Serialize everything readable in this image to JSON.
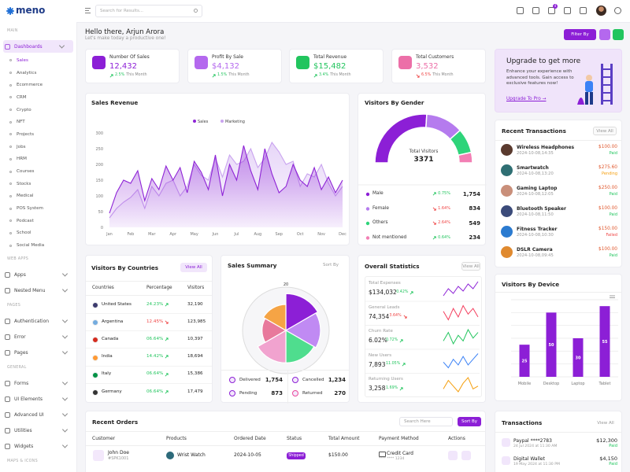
{
  "sidebar": {
    "logo": "meno",
    "sections": [
      {
        "title": "MAIN",
        "items": [
          {
            "label": "Dashboards",
            "active": true,
            "children": [
              {
                "label": "Sales",
                "active": true
              },
              {
                "label": "Analytics"
              },
              {
                "label": "Ecommerce"
              },
              {
                "label": "CRM"
              },
              {
                "label": "Crypto"
              },
              {
                "label": "NFT"
              },
              {
                "label": "Projects"
              },
              {
                "label": "Jobs"
              },
              {
                "label": "HRM"
              },
              {
                "label": "Courses"
              },
              {
                "label": "Stocks"
              },
              {
                "label": "Medical"
              },
              {
                "label": "POS System"
              },
              {
                "label": "Podcast"
              },
              {
                "label": "School"
              },
              {
                "label": "Social Media"
              }
            ]
          }
        ]
      },
      {
        "title": "WEB APPS",
        "items": [
          {
            "label": "Apps"
          },
          {
            "label": "Nested Menu"
          }
        ]
      },
      {
        "title": "PAGES",
        "items": [
          {
            "label": "Authentication"
          },
          {
            "label": "Error"
          },
          {
            "label": "Pages"
          }
        ]
      },
      {
        "title": "GENERAL",
        "items": [
          {
            "label": "Forms"
          },
          {
            "label": "UI Elements"
          },
          {
            "label": "Advanced UI"
          },
          {
            "label": "Utilities"
          },
          {
            "label": "Widgets"
          }
        ]
      },
      {
        "title": "MAPS & ICONS",
        "items": []
      }
    ]
  },
  "header": {
    "search_placeholder": "Search for Results...",
    "cart_count": 4
  },
  "greeting": {
    "title": "Hello there, Arjun Arora",
    "subtitle": "Let's make today a productive one!",
    "filter_button": "Filter By"
  },
  "stats": [
    {
      "label": "Number Of Sales",
      "value": "12,432",
      "change": "2.5%",
      "trend": "up",
      "period": "This Month",
      "color": "#8c1fd6"
    },
    {
      "label": "Profit By Sale",
      "value": "$4,132",
      "change": "1.5%",
      "trend": "up",
      "period": "This Month",
      "color": "#b468ee"
    },
    {
      "label": "Total Revenue",
      "value": "$15,482",
      "change": "3.4%",
      "trend": "up",
      "period": "This Month",
      "color": "#22c55e"
    },
    {
      "label": "Total Customers",
      "value": "3,532",
      "change": "6.5%",
      "trend": "down",
      "period": "This Month",
      "color": "#ec6fa8"
    }
  ],
  "upgrade": {
    "title": "Upgrade to get more",
    "text": [
      "Enhance your experience with",
      "advanced tools. Gain access to",
      "exclusive features now!"
    ],
    "link": "Upgrade To Pro →"
  },
  "sales_revenue": {
    "type": "line",
    "title": "Sales Revenue",
    "categories": [
      "Jan",
      null,
      null,
      "Feb",
      null,
      null,
      "Mar",
      null,
      null,
      "Apr",
      null,
      null,
      "May",
      null,
      null,
      "Jun",
      null,
      null,
      "Jul",
      null,
      null,
      "Aug",
      null,
      null,
      "Sep",
      null,
      null,
      "Oct",
      null,
      null,
      "Nov",
      null,
      null,
      "Dec"
    ],
    "series": [
      {
        "name": "Sales",
        "color": "#8e24d6",
        "values": [
          45,
          110,
          150,
          140,
          180,
          85,
          155,
          120,
          195,
          150,
          190,
          110,
          210,
          175,
          120,
          230,
          100,
          200,
          150,
          260,
          180,
          120,
          250,
          170,
          110,
          130,
          200,
          150,
          130,
          190,
          120,
          160,
          110,
          150
        ]
      },
      {
        "name": "Marketing",
        "color": "#c9a3ef",
        "values": [
          30,
          60,
          80,
          95,
          120,
          60,
          130,
          100,
          140,
          150,
          100,
          130,
          200,
          165,
          150,
          220,
          160,
          230,
          200,
          210,
          250,
          190,
          220,
          270,
          240,
          200,
          210,
          130,
          170,
          160,
          200,
          140,
          100,
          130
        ]
      }
    ],
    "ylim": [
      0,
      300
    ],
    "yticks": [
      0,
      50,
      100,
      150,
      200,
      250,
      300
    ],
    "grid": false
  },
  "visitors_by_gender": {
    "type": "donut",
    "title": "Visitors By Gender",
    "total_label": "Total Visitors",
    "total": 3371,
    "categories": [
      "Male",
      "Female",
      "Others",
      "Not mentioned"
    ],
    "values": [
      1754,
      834,
      549,
      234
    ],
    "value_labels": [
      "1,754",
      "834",
      "549",
      "234"
    ],
    "changes": [
      "0.75%",
      "1.64%",
      "2.64%",
      "0.64%"
    ],
    "trends": [
      "up",
      "down",
      "down",
      "up"
    ],
    "colors": [
      "#8c1fd6",
      "#b57bee",
      "#2ed47a",
      "#f27fb4"
    ]
  },
  "visitors_by_countries": {
    "title": "Visitors By Countries",
    "view_all": "View All",
    "columns": [
      "Countries",
      "Percentage",
      "Visitors"
    ],
    "rows": [
      [
        "United States",
        "24.23%",
        "32,190"
      ],
      [
        "Argentina",
        "12.45%",
        "123,985"
      ],
      [
        "Canada",
        "06.64%",
        "10,397"
      ],
      [
        "India",
        "14.42%",
        "18,694"
      ],
      [
        "Italy",
        "06.64%",
        "15,386"
      ],
      [
        "Germany",
        "06.64%",
        "17,479"
      ]
    ],
    "trends": [
      "up",
      "down",
      "up",
      "up",
      "up",
      "up"
    ]
  },
  "sales_summary": {
    "type": "polar",
    "title": "Sales Summary",
    "sort": "Sort By",
    "values": [
      17,
      16,
      15,
      15,
      11,
      12
    ],
    "colors": [
      "#8c1fd6",
      "#c08af3",
      "#4fdd8e",
      "#f1a3cf",
      "#e8799c",
      "#f5a445"
    ],
    "rlim": [
      0,
      20
    ],
    "rticks": [
      20
    ],
    "legend": [
      {
        "label": "Delivered",
        "value": "1,754"
      },
      {
        "label": "Cancelled",
        "value": "1,234"
      },
      {
        "label": "Pending",
        "value": "873"
      },
      {
        "label": "Returned",
        "value": "270"
      }
    ]
  },
  "overall_statistics": {
    "title": "Overall Statistics",
    "view_all": "View All",
    "rows": [
      {
        "label": "Total Expenses",
        "value": "$134,032",
        "change": "0.42%",
        "trend": "up",
        "color": "#8c1fd6",
        "values": [
          5,
          8,
          6,
          9,
          7,
          10,
          8,
          11
        ]
      },
      {
        "label": "General Leads",
        "value": "74,354",
        "change": "3.64%",
        "trend": "down",
        "color": "#f43f5e",
        "values": [
          8,
          5,
          9,
          6,
          10,
          7,
          9,
          6
        ]
      },
      {
        "label": "Churn Rate",
        "value": "6.02%",
        "change": "0.72%",
        "trend": "up",
        "color": "#22c55e",
        "values": [
          6,
          9,
          5,
          8,
          6,
          10,
          7,
          9
        ]
      },
      {
        "label": "New Users",
        "value": "7,893",
        "change": "11.05%",
        "trend": "up",
        "color": "#3b82f6",
        "values": [
          7,
          5,
          8,
          6,
          9,
          6,
          8,
          10
        ]
      },
      {
        "label": "Returning Users",
        "value": "3,258",
        "change": "1.69%",
        "trend": "up",
        "color": "#f59e0b",
        "values": [
          6,
          9,
          7,
          5,
          8,
          10,
          6,
          7
        ]
      }
    ]
  },
  "recent_transactions": {
    "title": "Recent Transactions",
    "view_all": "View All",
    "items": [
      {
        "name": "Wireless Headphones",
        "date": "2024-10-08,14:35",
        "amount": "$100.00",
        "status": "Paid"
      },
      {
        "name": "Smartwatch",
        "date": "2024-10-08,13:20",
        "amount": "$275.60",
        "status": "Pending"
      },
      {
        "name": "Gaming Laptop",
        "date": "2024-10-08,12:05",
        "amount": "$250.00",
        "status": "Paid"
      },
      {
        "name": "Bluetooth Speaker",
        "date": "2024-10-08,11:50",
        "amount": "$100.00",
        "status": "Paid"
      },
      {
        "name": "Fitness Tracker",
        "date": "2024-10-08,10:30",
        "amount": "$150.00",
        "status": "Failed"
      },
      {
        "name": "DSLR Camera",
        "date": "2024-10-08,09:45",
        "amount": "$100.00",
        "status": "Paid"
      }
    ]
  },
  "visitors_by_device": {
    "type": "bar",
    "title": "Visitors By Device",
    "categories": [
      "Mobile",
      "Desktop",
      "Laptop",
      "Tablet"
    ],
    "values": [
      25,
      50,
      30,
      55
    ],
    "color": "#8c1fd6",
    "ylim": [
      0,
      60
    ],
    "yticks": [
      0,
      10,
      20,
      30,
      40,
      50,
      60
    ],
    "grid": true
  },
  "recent_orders": {
    "title": "Recent Orders",
    "search_placeholder": "Search Here",
    "sort": "Sort By",
    "columns": [
      "Customer",
      "Products",
      "Ordered Date",
      "Status",
      "Total Amount",
      "Payment Method",
      "Actions"
    ],
    "rows": [
      {
        "customer": "John Doe",
        "id": "#SPK1001",
        "product": "Wrist Watch",
        "date": "2024-10-05",
        "status": "Shipped",
        "amount": "$150.00",
        "payment": "Credit Card",
        "card": "**** **** 1234"
      }
    ]
  },
  "transactions": {
    "title": "Transactions",
    "view_all": "View All",
    "items": [
      {
        "name": "Paypal ****2783",
        "date": "24 Jul 2024 at 11:30 AM",
        "amount": "$12,300",
        "status": "Paid"
      },
      {
        "name": "Digital Wallet",
        "date": "19 May 2024 at 11:30 PM",
        "amount": "$4,150",
        "status": "Paid"
      }
    ]
  }
}
